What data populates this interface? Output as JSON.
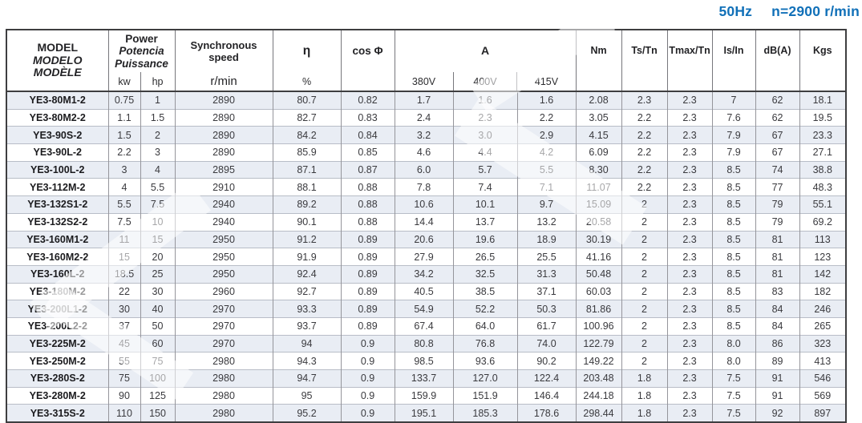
{
  "caption": {
    "frequency": "50Hz",
    "speed": "n=2900 r/min"
  },
  "colors": {
    "accent": "#1170b8",
    "row_shade": "#e9edf4"
  },
  "table": {
    "header": {
      "model_lines": [
        "MODEL",
        "MODELO",
        "MODÈLE"
      ],
      "power_lines": [
        "Power",
        "Potencia",
        "Puissance"
      ],
      "power_units": [
        "kw",
        "hp"
      ],
      "sync_lines": [
        "Synchronous",
        "speed"
      ],
      "sync_unit": "r/min",
      "eta_label": "η",
      "eta_unit": "%",
      "cos_label": "cos Φ",
      "current_label": "A",
      "current_voltages": [
        "380V",
        "400V",
        "415V"
      ],
      "nm_label": "Nm",
      "ts_label": "Ts/Tn",
      "tmax_label": "Tmax/Tn",
      "is_label": "Is/In",
      "db_label": "dB(A)",
      "kgs_label": "Kgs"
    },
    "rows": [
      [
        "YE3-80M1-2",
        "0.75",
        "1",
        "2890",
        "80.7",
        "0.82",
        "1.7",
        "1.6",
        "1.6",
        "2.08",
        "2.3",
        "2.3",
        "7",
        "62",
        "18.1"
      ],
      [
        "YE3-80M2-2",
        "1.1",
        "1.5",
        "2890",
        "82.7",
        "0.83",
        "2.4",
        "2.3",
        "2.2",
        "3.05",
        "2.2",
        "2.3",
        "7.6",
        "62",
        "19.5"
      ],
      [
        "YE3-90S-2",
        "1.5",
        "2",
        "2890",
        "84.2",
        "0.84",
        "3.2",
        "3.0",
        "2.9",
        "4.15",
        "2.2",
        "2.3",
        "7.9",
        "67",
        "23.3"
      ],
      [
        "YE3-90L-2",
        "2.2",
        "3",
        "2890",
        "85.9",
        "0.85",
        "4.6",
        "4.4",
        "4.2",
        "6.09",
        "2.2",
        "2.3",
        "7.9",
        "67",
        "27.1"
      ],
      [
        "YE3-100L-2",
        "3",
        "4",
        "2895",
        "87.1",
        "0.87",
        "6.0",
        "5.7",
        "5.5",
        "8.30",
        "2.2",
        "2.3",
        "8.5",
        "74",
        "38.8"
      ],
      [
        "YE3-112M-2",
        "4",
        "5.5",
        "2910",
        "88.1",
        "0.88",
        "7.8",
        "7.4",
        "7.1",
        "11.07",
        "2.2",
        "2.3",
        "8.5",
        "77",
        "48.3"
      ],
      [
        "YE3-132S1-2",
        "5.5",
        "7.5",
        "2940",
        "89.2",
        "0.88",
        "10.6",
        "10.1",
        "9.7",
        "15.09",
        "2",
        "2.3",
        "8.5",
        "79",
        "55.1"
      ],
      [
        "YE3-132S2-2",
        "7.5",
        "10",
        "2940",
        "90.1",
        "0.88",
        "14.4",
        "13.7",
        "13.2",
        "20.58",
        "2",
        "2.3",
        "8.5",
        "79",
        "69.2"
      ],
      [
        "YE3-160M1-2",
        "11",
        "15",
        "2950",
        "91.2",
        "0.89",
        "20.6",
        "19.6",
        "18.9",
        "30.19",
        "2",
        "2.3",
        "8.5",
        "81",
        "113"
      ],
      [
        "YE3-160M2-2",
        "15",
        "20",
        "2950",
        "91.9",
        "0.89",
        "27.9",
        "26.5",
        "25.5",
        "41.16",
        "2",
        "2.3",
        "8.5",
        "81",
        "123"
      ],
      [
        "YE3-160L-2",
        "18.5",
        "25",
        "2950",
        "92.4",
        "0.89",
        "34.2",
        "32.5",
        "31.3",
        "50.48",
        "2",
        "2.3",
        "8.5",
        "81",
        "142"
      ],
      [
        "YE3-180M-2",
        "22",
        "30",
        "2960",
        "92.7",
        "0.89",
        "40.5",
        "38.5",
        "37.1",
        "60.03",
        "2",
        "2.3",
        "8.5",
        "83",
        "182"
      ],
      [
        "YE3-200L1-2",
        "30",
        "40",
        "2970",
        "93.3",
        "0.89",
        "54.9",
        "52.2",
        "50.3",
        "81.86",
        "2",
        "2.3",
        "8.5",
        "84",
        "246"
      ],
      [
        "YE3-200L2-2",
        "37",
        "50",
        "2970",
        "93.7",
        "0.89",
        "67.4",
        "64.0",
        "61.7",
        "100.96",
        "2",
        "2.3",
        "8.5",
        "84",
        "265"
      ],
      [
        "YE3-225M-2",
        "45",
        "60",
        "2970",
        "94",
        "0.9",
        "80.8",
        "76.8",
        "74.0",
        "122.79",
        "2",
        "2.3",
        "8.0",
        "86",
        "323"
      ],
      [
        "YE3-250M-2",
        "55",
        "75",
        "2980",
        "94.3",
        "0.9",
        "98.5",
        "93.6",
        "90.2",
        "149.22",
        "2",
        "2.3",
        "8.0",
        "89",
        "413"
      ],
      [
        "YE3-280S-2",
        "75",
        "100",
        "2980",
        "94.7",
        "0.9",
        "133.7",
        "127.0",
        "122.4",
        "203.48",
        "1.8",
        "2.3",
        "7.5",
        "91",
        "546"
      ],
      [
        "YE3-280M-2",
        "90",
        "125",
        "2980",
        "95",
        "0.9",
        "159.9",
        "151.9",
        "146.4",
        "244.18",
        "1.8",
        "2.3",
        "7.5",
        "91",
        "569"
      ],
      [
        "YE3-315S-2",
        "110",
        "150",
        "2980",
        "95.2",
        "0.9",
        "195.1",
        "185.3",
        "178.6",
        "298.44",
        "1.8",
        "2.3",
        "7.5",
        "92",
        "897"
      ]
    ]
  }
}
